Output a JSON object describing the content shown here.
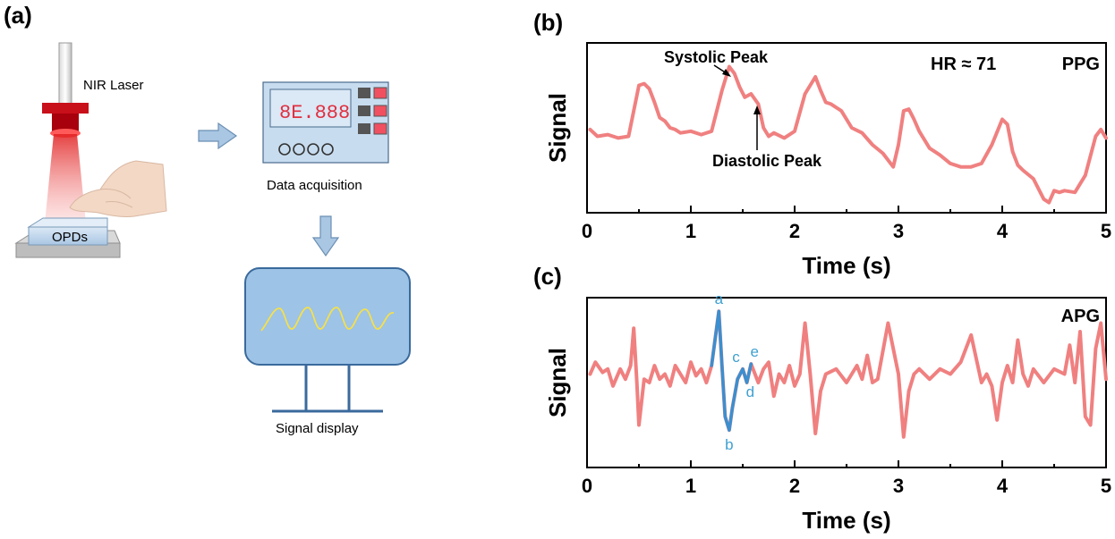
{
  "panel_a": {
    "label": "(a)",
    "laser_label": "NIR Laser",
    "opd_label": "OPDs",
    "daq_label": "Data acquisition",
    "daq_display": "8E.888",
    "display_label": "Signal display"
  },
  "colors": {
    "signal": "#f08080",
    "highlight": "#3b8fd0",
    "device_fill": "#c7dcef",
    "screen_fill": "#9dc3e6",
    "laser_red": "#d9141b"
  },
  "chart_data": [
    {
      "type": "line",
      "panel_label": "(b)",
      "title": "PPG",
      "annotation_hr": "HR ≈ 71",
      "xlabel": "Time (s)",
      "ylabel": "Signal",
      "xlim": [
        0,
        5
      ],
      "ylim": [
        0,
        1
      ],
      "xticks": [
        "0",
        "1",
        "2",
        "3",
        "4",
        "5"
      ],
      "annotations": [
        {
          "text": "Systolic Peak",
          "x": 1.37,
          "y": 0.91
        },
        {
          "text": "Diastolic Peak",
          "x": 1.65,
          "y": 0.67
        }
      ],
      "series": [
        {
          "name": "PPG",
          "x": [
            0.03,
            0.1,
            0.2,
            0.3,
            0.4,
            0.45,
            0.5,
            0.55,
            0.6,
            0.65,
            0.7,
            0.75,
            0.8,
            0.85,
            0.9,
            1.0,
            1.1,
            1.2,
            1.3,
            1.37,
            1.42,
            1.47,
            1.52,
            1.58,
            1.65,
            1.7,
            1.75,
            1.8,
            1.9,
            2.0,
            2.1,
            2.2,
            2.25,
            2.3,
            2.35,
            2.45,
            2.55,
            2.65,
            2.75,
            2.85,
            2.95,
            3.0,
            3.05,
            3.1,
            3.15,
            3.2,
            3.3,
            3.4,
            3.5,
            3.6,
            3.7,
            3.8,
            3.9,
            4.0,
            4.05,
            4.1,
            4.15,
            4.2,
            4.3,
            4.4,
            4.45,
            4.5,
            4.55,
            4.6,
            4.7,
            4.8,
            4.9,
            4.95,
            5.0
          ],
          "y": [
            0.49,
            0.45,
            0.46,
            0.44,
            0.45,
            0.6,
            0.75,
            0.76,
            0.73,
            0.65,
            0.56,
            0.54,
            0.5,
            0.49,
            0.47,
            0.48,
            0.46,
            0.48,
            0.72,
            0.86,
            0.82,
            0.74,
            0.68,
            0.7,
            0.64,
            0.5,
            0.45,
            0.47,
            0.44,
            0.48,
            0.7,
            0.8,
            0.72,
            0.65,
            0.64,
            0.6,
            0.5,
            0.47,
            0.4,
            0.35,
            0.27,
            0.4,
            0.6,
            0.61,
            0.55,
            0.48,
            0.38,
            0.34,
            0.29,
            0.27,
            0.27,
            0.29,
            0.4,
            0.55,
            0.52,
            0.36,
            0.28,
            0.25,
            0.2,
            0.08,
            0.06,
            0.13,
            0.12,
            0.13,
            0.12,
            0.22,
            0.45,
            0.49,
            0.44
          ]
        }
      ]
    },
    {
      "type": "line",
      "panel_label": "(c)",
      "title": "APG",
      "xlabel": "Time (s)",
      "ylabel": "Signal",
      "xlim": [
        0,
        5
      ],
      "ylim": [
        0,
        1
      ],
      "xticks": [
        "0",
        "1",
        "2",
        "3",
        "4",
        "5"
      ],
      "point_labels": [
        {
          "text": "a",
          "x": 1.27,
          "y": 0.92
        },
        {
          "text": "b",
          "x": 1.37,
          "y": 0.22
        },
        {
          "text": "c",
          "x": 1.47,
          "y": 0.58
        },
        {
          "text": "d",
          "x": 1.52,
          "y": 0.5
        },
        {
          "text": "e",
          "x": 1.58,
          "y": 0.61
        }
      ],
      "series": [
        {
          "name": "APG",
          "x": [
            0.03,
            0.08,
            0.15,
            0.2,
            0.25,
            0.32,
            0.37,
            0.42,
            0.45,
            0.48,
            0.5,
            0.55,
            0.6,
            0.65,
            0.7,
            0.75,
            0.8,
            0.85,
            0.9,
            0.95,
            1.0,
            1.05,
            1.1,
            1.15,
            1.2,
            1.27,
            1.3,
            1.33,
            1.37,
            1.4,
            1.45,
            1.5,
            1.54,
            1.58,
            1.65,
            1.7,
            1.75,
            1.8,
            1.85,
            1.9,
            1.95,
            2.0,
            2.05,
            2.1,
            2.15,
            2.2,
            2.25,
            2.3,
            2.4,
            2.5,
            2.6,
            2.65,
            2.7,
            2.75,
            2.8,
            2.9,
            3.0,
            3.05,
            3.1,
            3.15,
            3.2,
            3.3,
            3.4,
            3.5,
            3.6,
            3.7,
            3.8,
            3.85,
            3.9,
            3.95,
            4.0,
            4.05,
            4.1,
            4.15,
            4.2,
            4.25,
            4.3,
            4.4,
            4.5,
            4.6,
            4.65,
            4.7,
            4.75,
            4.8,
            4.85,
            4.9,
            4.95,
            5.0
          ],
          "y": [
            0.55,
            0.62,
            0.56,
            0.58,
            0.48,
            0.58,
            0.52,
            0.6,
            0.82,
            0.5,
            0.25,
            0.52,
            0.5,
            0.6,
            0.52,
            0.55,
            0.48,
            0.6,
            0.55,
            0.5,
            0.62,
            0.54,
            0.58,
            0.5,
            0.6,
            0.92,
            0.6,
            0.3,
            0.22,
            0.35,
            0.52,
            0.58,
            0.5,
            0.61,
            0.5,
            0.58,
            0.62,
            0.42,
            0.55,
            0.5,
            0.6,
            0.48,
            0.55,
            0.85,
            0.55,
            0.2,
            0.45,
            0.55,
            0.58,
            0.5,
            0.6,
            0.52,
            0.66,
            0.5,
            0.52,
            0.85,
            0.55,
            0.18,
            0.45,
            0.55,
            0.58,
            0.52,
            0.58,
            0.55,
            0.62,
            0.78,
            0.5,
            0.55,
            0.48,
            0.28,
            0.5,
            0.6,
            0.5,
            0.75,
            0.55,
            0.48,
            0.58,
            0.5,
            0.58,
            0.55,
            0.72,
            0.5,
            0.8,
            0.3,
            0.25,
            0.7,
            0.85,
            0.52
          ]
        }
      ]
    }
  ]
}
